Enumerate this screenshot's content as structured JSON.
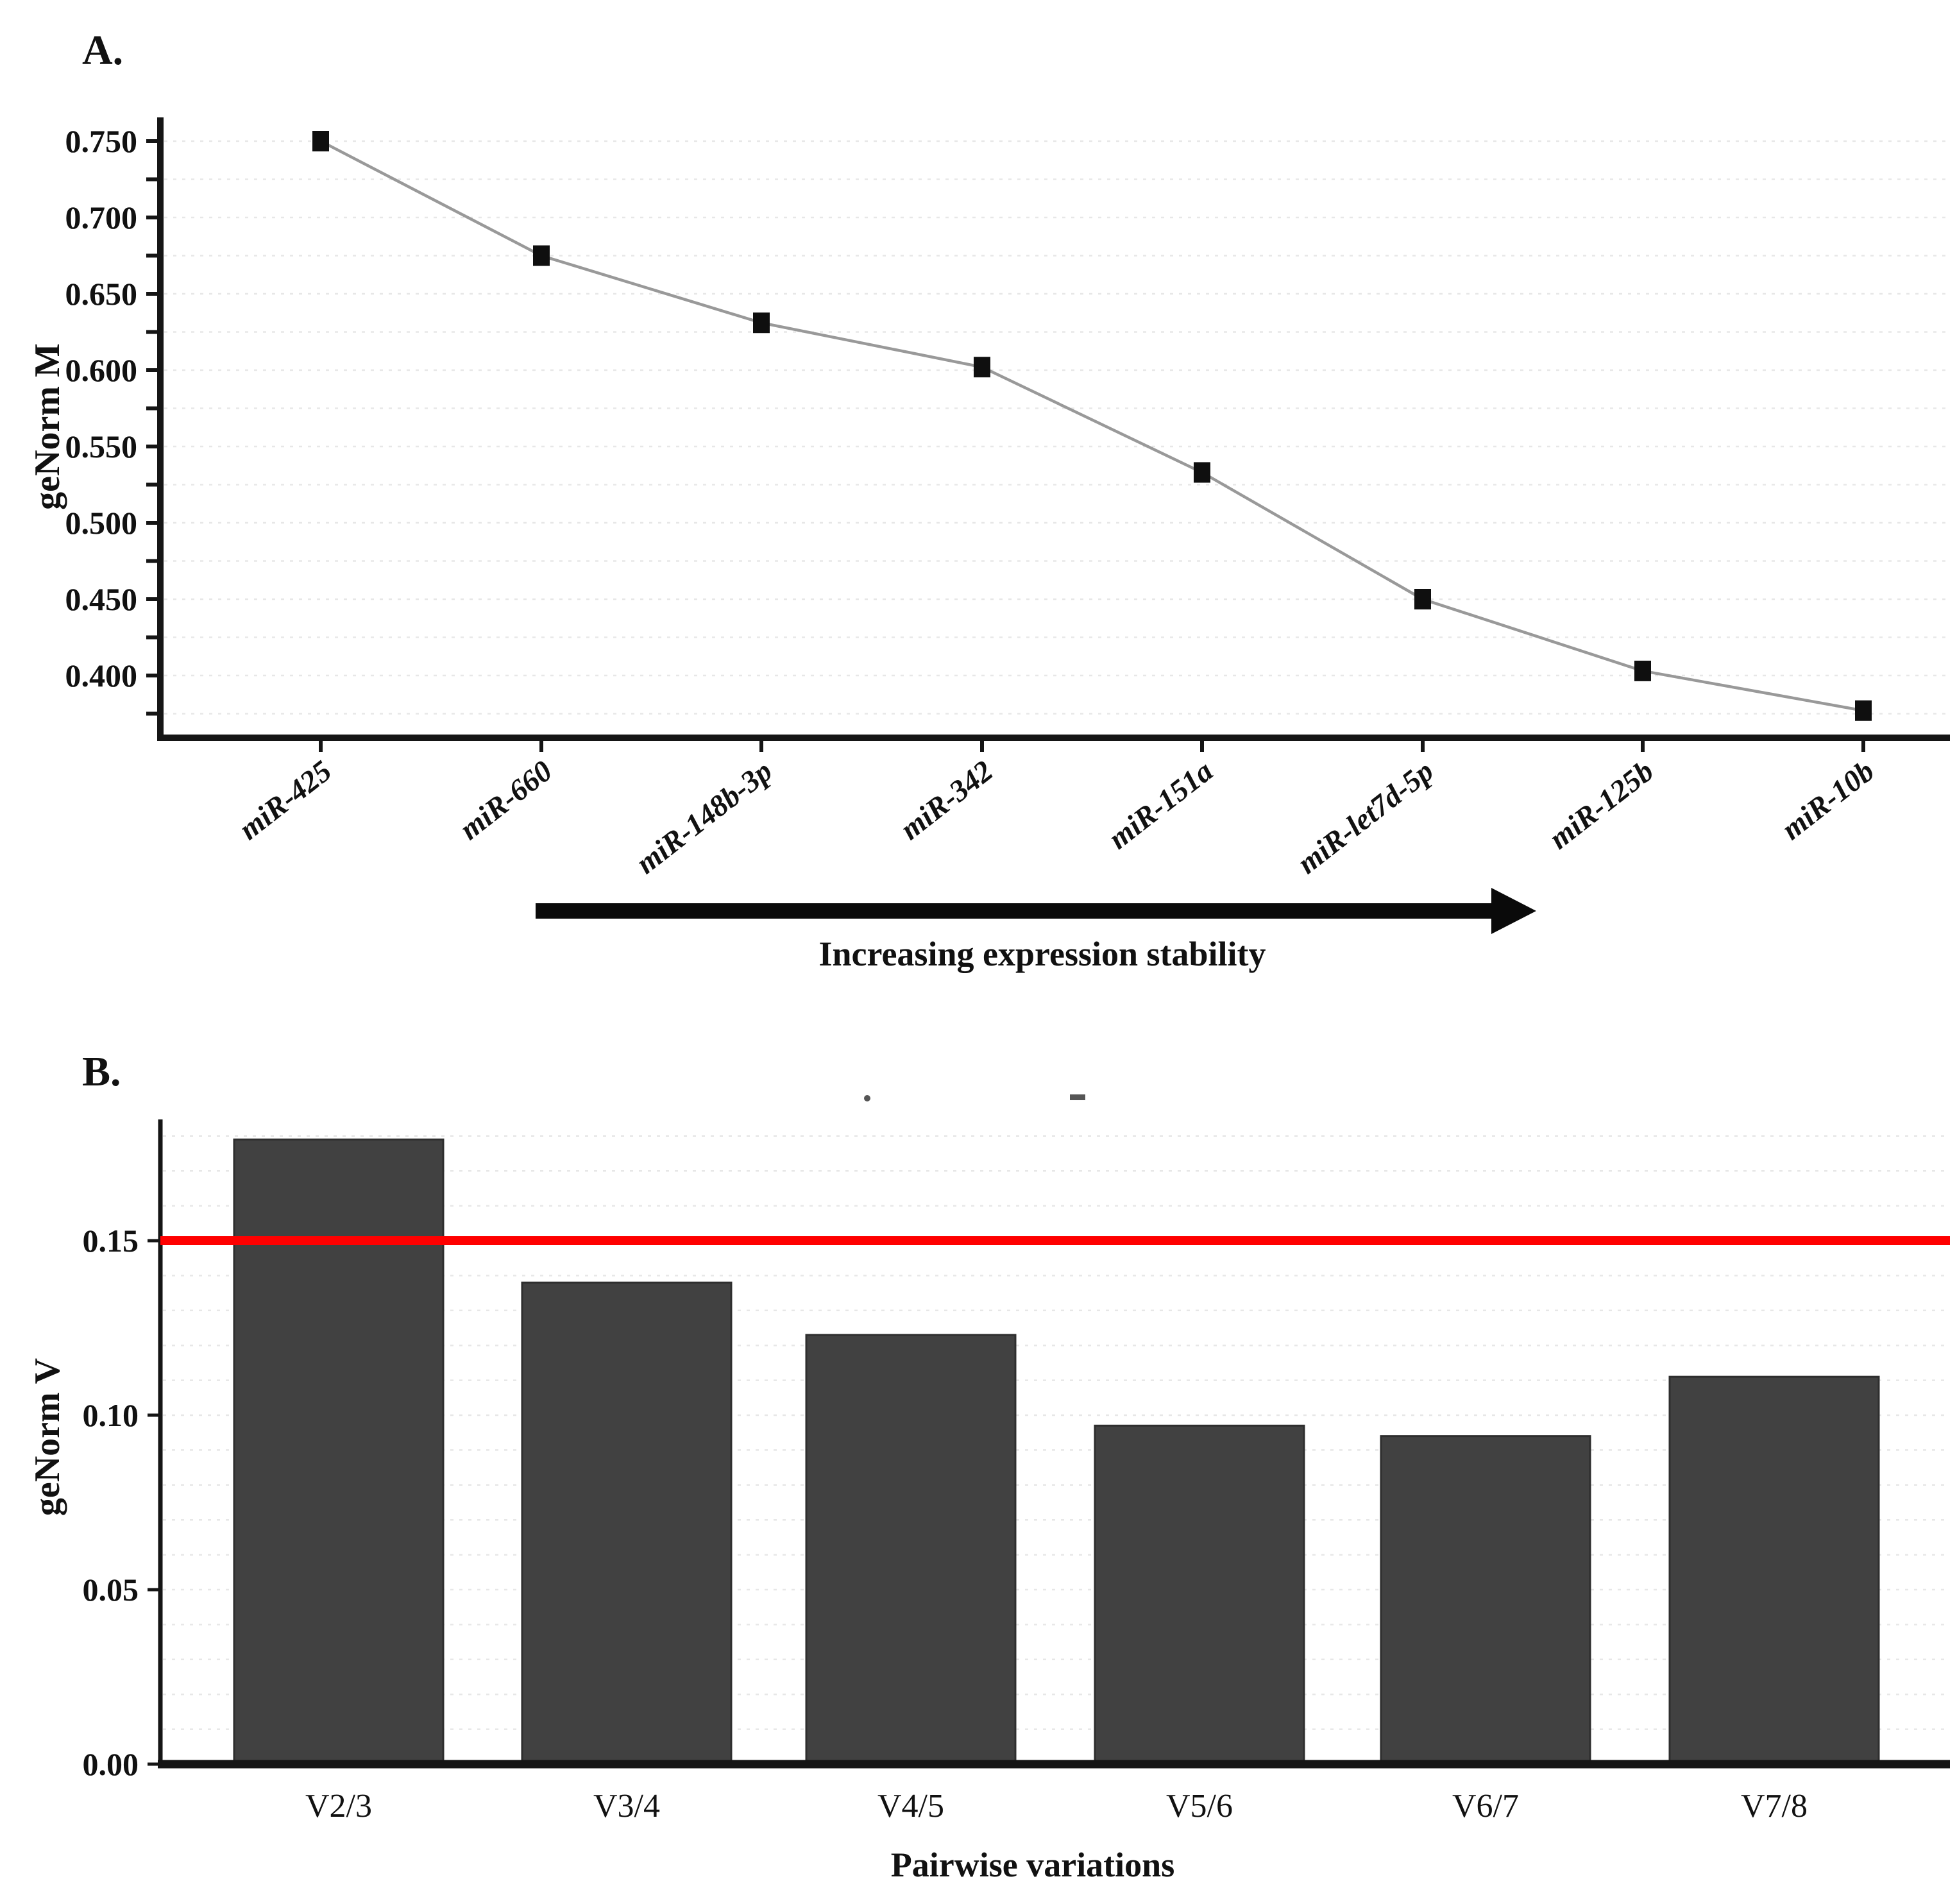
{
  "figure": {
    "background": "#ffffff",
    "panels": {
      "a": {
        "label": "A."
      },
      "b": {
        "label": "B."
      }
    }
  },
  "chart_data": [
    {
      "id": "genorm-m-stability",
      "type": "line",
      "panel": "A",
      "title": "",
      "xlabel": "",
      "ylabel": "geNorm M",
      "categories": [
        "miR-425",
        "miR-660",
        "miR-148b-3p",
        "miR-342",
        "miR-151a",
        "miR-let7d-5p",
        "miR-125b",
        "miR-10b"
      ],
      "values": [
        0.75,
        0.675,
        0.631,
        0.602,
        0.533,
        0.45,
        0.403,
        0.377
      ],
      "ylim": [
        0.373,
        0.757
      ],
      "yticks": [
        {
          "v": 0.75,
          "label": "0.750"
        },
        {
          "v": 0.7,
          "label": "0.700"
        },
        {
          "v": 0.65,
          "label": "0.650"
        },
        {
          "v": 0.6,
          "label": "0.600"
        },
        {
          "v": 0.55,
          "label": "0.550"
        },
        {
          "v": 0.5,
          "label": "0.500"
        },
        {
          "v": 0.45,
          "label": "0.450"
        },
        {
          "v": 0.4,
          "label": "0.400"
        }
      ],
      "minor_tick_step": 0.025,
      "grid": true,
      "legend": "none",
      "marker": "square",
      "line_color": "#999999",
      "marker_color": "#0f0f0f",
      "grid_color": "#e7e7e7",
      "annotation": {
        "text": "Increasing expression stability",
        "arrow": "right"
      }
    },
    {
      "id": "genorm-v-pairwise",
      "type": "bar",
      "panel": "B",
      "title": "",
      "xlabel": "Pairwise variations",
      "ylabel": "geNorm V",
      "categories": [
        "V2/3",
        "V3/4",
        "V4/5",
        "V5/6",
        "V6/7",
        "V7/8"
      ],
      "values": [
        0.179,
        0.138,
        0.123,
        0.097,
        0.094,
        0.111
      ],
      "ylim": [
        0.0,
        0.185
      ],
      "yticks": [
        {
          "v": 0.15,
          "label": "0.15"
        },
        {
          "v": 0.1,
          "label": "0.10"
        },
        {
          "v": 0.05,
          "label": "0.05"
        },
        {
          "v": 0.0,
          "label": "0.00"
        }
      ],
      "minor_tick_step": 0.01,
      "grid": true,
      "legend": "none",
      "bar_color": "#414141",
      "grid_color": "#e7e7e7",
      "threshold": {
        "value": 0.15,
        "color": "#ff0000"
      }
    }
  ]
}
